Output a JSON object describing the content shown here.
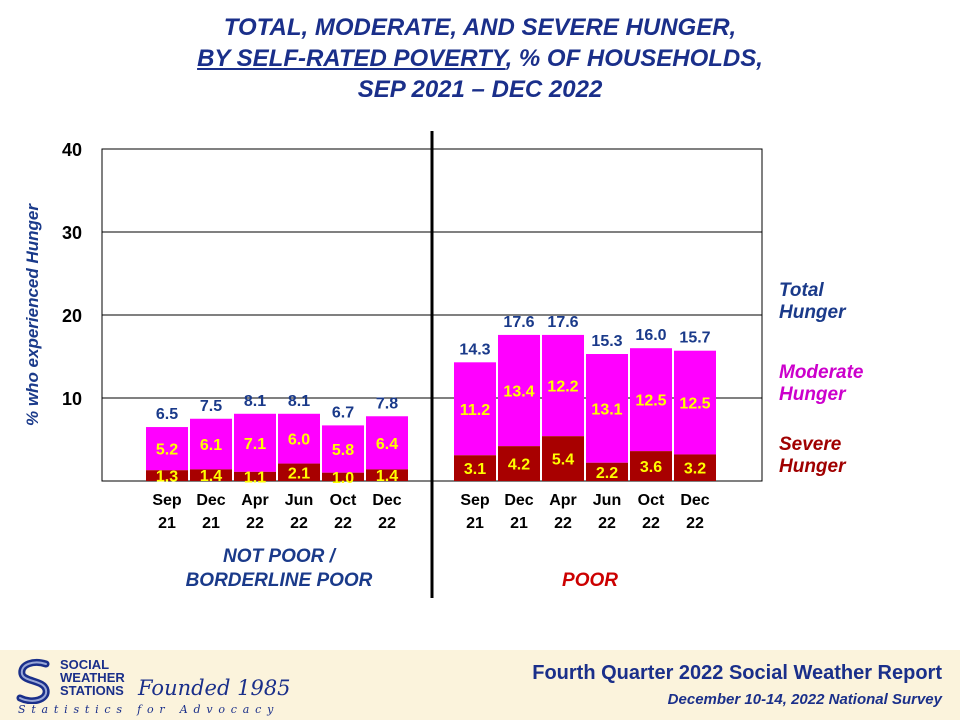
{
  "title": {
    "line1": "TOTAL, MODERATE, AND SEVERE HUNGER,",
    "line2_underlined": "BY SELF-RATED POVERTY",
    "line2_rest": ", % OF HOUSEHOLDS,",
    "line3": "SEP 2021 – DEC 2022"
  },
  "legend": {
    "total": "Total Hunger",
    "moderate": "Moderate Hunger",
    "severe": "Severe Hunger"
  },
  "footer": {
    "org_line1": "SOCIAL",
    "org_line2": "WEATHER",
    "org_line3": "STATIONS",
    "founded": "Founded 1985",
    "tagline": "Statistics for Advocacy",
    "report_title": "Fourth Quarter 2022 Social Weather Report",
    "report_subtitle": "December 10-14, 2022 National Survey"
  },
  "colors": {
    "title": "#1a2f8a",
    "moderate": "#ff00ff",
    "severe": "#a80000",
    "total_label": "#1a3a8a",
    "moderate_label": "#cc00cc",
    "severe_label": "#a00000",
    "inner_label": "#ffff00",
    "group_poor_label": "#cc0000"
  },
  "chart_data": {
    "type": "bar",
    "stacked": true,
    "ylabel": "% who experienced Hunger",
    "ylim": [
      0,
      40
    ],
    "yticks": [
      10,
      20,
      30,
      40
    ],
    "grid": true,
    "legend_position": "right",
    "groups": [
      {
        "label": "NOT POOR / BORDERLINE POOR",
        "label_lines": [
          "NOT POOR /",
          "BORDERLINE POOR"
        ],
        "categories": [
          [
            "Sep",
            "21"
          ],
          [
            "Dec",
            "21"
          ],
          [
            "Apr",
            "22"
          ],
          [
            "Jun",
            "22"
          ],
          [
            "Oct",
            "22"
          ],
          [
            "Dec",
            "22"
          ]
        ],
        "total": [
          6.5,
          7.5,
          8.1,
          8.1,
          6.7,
          7.8
        ],
        "moderate": [
          5.2,
          6.1,
          7.1,
          6.0,
          5.8,
          6.4
        ],
        "severe": [
          1.3,
          1.4,
          1.1,
          2.1,
          1.0,
          1.4
        ]
      },
      {
        "label": "POOR",
        "label_lines": [
          "POOR"
        ],
        "categories": [
          [
            "Sep",
            "21"
          ],
          [
            "Dec",
            "21"
          ],
          [
            "Apr",
            "22"
          ],
          [
            "Jun",
            "22"
          ],
          [
            "Oct",
            "22"
          ],
          [
            "Dec",
            "22"
          ]
        ],
        "total": [
          14.3,
          17.6,
          17.6,
          15.3,
          16.0,
          15.7
        ],
        "moderate": [
          11.2,
          13.4,
          12.2,
          13.1,
          12.5,
          12.5
        ],
        "severe": [
          3.1,
          4.2,
          5.4,
          2.2,
          3.6,
          3.2
        ]
      }
    ]
  }
}
